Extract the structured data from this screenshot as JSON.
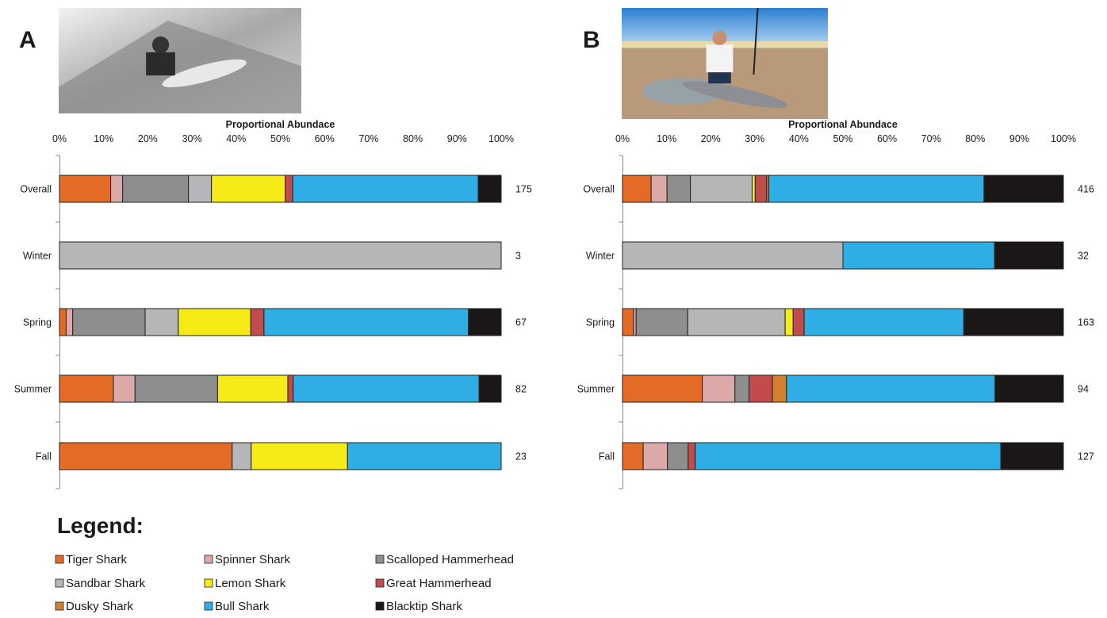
{
  "legend": {
    "title": "Legend:",
    "items": [
      {
        "name": "Tiger Shark",
        "color": "#e46b25"
      },
      {
        "name": "Spinner Shark",
        "color": "#dca9a9"
      },
      {
        "name": "Scalloped Hammerhead",
        "color": "#8e8e8e"
      },
      {
        "name": "Sandbar Shark",
        "color": "#b6b6b8"
      },
      {
        "name": "Lemon Shark",
        "color": "#f6ea17"
      },
      {
        "name": "Great Hammerhead",
        "color": "#c24b4c"
      },
      {
        "name": "Dusky Shark",
        "color": "#d57f2f"
      },
      {
        "name": "Bull Shark",
        "color": "#2eaee4"
      },
      {
        "name": "Blacktip Shark",
        "color": "#1b1717"
      }
    ]
  },
  "chart_data": [
    {
      "type": "bar",
      "orientation": "horizontal",
      "stacked": true,
      "panel_label": "A",
      "photo": "black-and-white photo of a person with a caught shark on a rocky jetty",
      "xlabel": "Proportional Abundace",
      "xlim": [
        0,
        100
      ],
      "x_ticks": [
        "0%",
        "10%",
        "20%",
        "30%",
        "40%",
        "50%",
        "60%",
        "70%",
        "80%",
        "90%",
        "100%"
      ],
      "categories": [
        "Overall",
        "Winter",
        "Spring",
        "Summer",
        "Fall"
      ],
      "sample_sizes": [
        "175",
        "3",
        "67",
        "82",
        "23"
      ],
      "series": [
        {
          "name": "Tiger Shark",
          "values": [
            11.6,
            0,
            1.5,
            12.2,
            39.1
          ]
        },
        {
          "name": "Spinner Shark",
          "values": [
            2.7,
            0,
            1.5,
            4.9,
            0
          ]
        },
        {
          "name": "Scalloped Hammerhead",
          "values": [
            14.9,
            0,
            16.4,
            18.7,
            0
          ]
        },
        {
          "name": "Sandbar Shark",
          "values": [
            5.2,
            100,
            7.5,
            0,
            4.3
          ]
        },
        {
          "name": "Lemon Shark",
          "values": [
            16.7,
            0,
            16.4,
            15.9,
            21.8
          ]
        },
        {
          "name": "Great Hammerhead",
          "values": [
            1.7,
            0,
            3.0,
            1.2,
            0
          ]
        },
        {
          "name": "Dusky Shark",
          "values": [
            0,
            0,
            0,
            0,
            0
          ]
        },
        {
          "name": "Bull Shark",
          "values": [
            42.0,
            0,
            46.3,
            42.1,
            34.8
          ]
        },
        {
          "name": "Blacktip Shark",
          "values": [
            5.2,
            0,
            7.4,
            5.0,
            0
          ]
        }
      ]
    },
    {
      "type": "bar",
      "orientation": "horizontal",
      "stacked": true,
      "panel_label": "B",
      "photo": "color photo of an angler holding a shark on a sandy beach",
      "xlabel": "Proportional Abundace",
      "xlim": [
        0,
        100
      ],
      "x_ticks": [
        "0%",
        "10%",
        "20%",
        "30%",
        "40%",
        "50%",
        "60%",
        "70%",
        "80%",
        "90%",
        "100%"
      ],
      "categories": [
        "Overall",
        "Winter",
        "Spring",
        "Summer",
        "Fall"
      ],
      "sample_sizes": [
        "416",
        "32",
        "163",
        "94",
        "127"
      ],
      "series": [
        {
          "name": "Tiger Shark",
          "values": [
            6.5,
            0,
            2.5,
            18.1,
            4.7
          ]
        },
        {
          "name": "Spinner Shark",
          "values": [
            3.6,
            0,
            0.6,
            7.4,
            5.5
          ]
        },
        {
          "name": "Scalloped Hammerhead",
          "values": [
            5.3,
            0,
            11.7,
            3.2,
            4.7
          ]
        },
        {
          "name": "Sandbar Shark",
          "values": [
            14.0,
            50.0,
            22.1,
            0,
            0
          ]
        },
        {
          "name": "Lemon Shark",
          "values": [
            0.7,
            0,
            1.8,
            0,
            0
          ]
        },
        {
          "name": "Great Hammerhead",
          "values": [
            2.6,
            0,
            2.5,
            5.3,
            1.6
          ]
        },
        {
          "name": "Dusky Shark",
          "values": [
            0.5,
            0,
            0,
            3.2,
            0
          ]
        },
        {
          "name": "Bull Shark",
          "values": [
            48.8,
            34.4,
            36.2,
            47.3,
            69.3
          ]
        },
        {
          "name": "Blacktip Shark",
          "values": [
            18.0,
            15.6,
            22.6,
            15.5,
            14.2
          ]
        }
      ]
    }
  ]
}
